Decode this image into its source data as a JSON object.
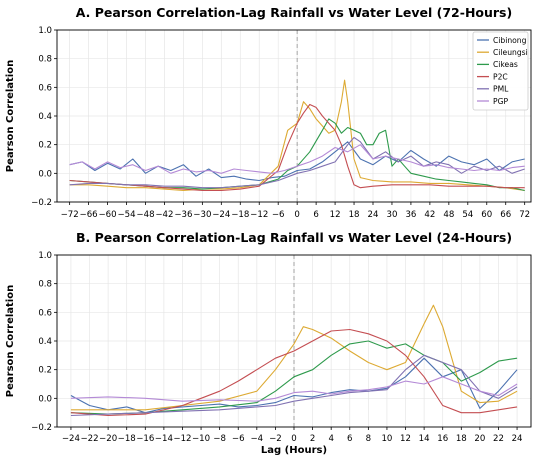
{
  "chart_data": [
    {
      "type": "line",
      "title": "A. Pearson Correlation-Lag Rainfall vs Water Level (72-Hours)",
      "xlabel": "",
      "ylabel": "Pearson Correlation",
      "xlim": [
        -76,
        74
      ],
      "ylim": [
        -0.2,
        1.0
      ],
      "xticks": [
        -72,
        -66,
        -60,
        -54,
        -48,
        -42,
        -36,
        -30,
        -24,
        -18,
        -12,
        -6,
        0,
        6,
        12,
        18,
        24,
        30,
        36,
        42,
        48,
        54,
        60,
        66,
        72
      ],
      "xticklabels": [
        "−72",
        "−66",
        "−60",
        "−54",
        "−48",
        "−42",
        "−36",
        "−30",
        "−24",
        "−18",
        "−12",
        "−6",
        "0",
        "6",
        "12",
        "18",
        "24",
        "30",
        "36",
        "42",
        "48",
        "54",
        "60",
        "66",
        "72"
      ],
      "yticks": [
        -0.2,
        0.0,
        0.2,
        0.4,
        0.6,
        0.8,
        1.0
      ],
      "yticklabels": [
        "−0.2",
        "0.0",
        "0.2",
        "0.4",
        "0.6",
        "0.8",
        "1.0"
      ],
      "vline_x": 0,
      "grid": true,
      "legend_position": "top-right",
      "series": [
        {
          "name": "Cibinong",
          "color": "#4C72B0",
          "x": [
            -72,
            -68,
            -64,
            -60,
            -56,
            -52,
            -48,
            -44,
            -40,
            -36,
            -32,
            -28,
            -24,
            -20,
            -16,
            -12,
            -8,
            -4,
            0,
            4,
            8,
            12,
            16,
            20,
            24,
            28,
            32,
            36,
            40,
            44,
            48,
            52,
            56,
            60,
            64,
            68,
            72
          ],
          "y": [
            0.06,
            0.08,
            0.02,
            0.07,
            0.03,
            0.1,
            0.0,
            0.05,
            0.02,
            0.06,
            -0.02,
            0.03,
            -0.03,
            -0.02,
            -0.04,
            -0.05,
            -0.03,
            -0.02,
            0.02,
            0.03,
            0.08,
            0.15,
            0.22,
            0.1,
            0.06,
            0.12,
            0.08,
            0.16,
            0.1,
            0.05,
            0.12,
            0.08,
            0.06,
            0.1,
            0.02,
            0.08,
            0.1
          ]
        },
        {
          "name": "Cileungsi",
          "color": "#DDAA33",
          "x": [
            -72,
            -66,
            -60,
            -54,
            -48,
            -42,
            -36,
            -30,
            -24,
            -18,
            -12,
            -6,
            -3,
            0,
            2,
            4,
            6,
            8,
            10,
            12,
            14,
            15,
            16,
            18,
            20,
            24,
            30,
            36,
            42,
            48,
            54,
            60,
            66,
            72
          ],
          "y": [
            -0.08,
            -0.08,
            -0.09,
            -0.1,
            -0.1,
            -0.11,
            -0.12,
            -0.11,
            -0.11,
            -0.1,
            -0.08,
            0.05,
            0.3,
            0.35,
            0.5,
            0.45,
            0.38,
            0.33,
            0.28,
            0.3,
            0.5,
            0.65,
            0.5,
            0.1,
            -0.03,
            -0.05,
            -0.06,
            -0.06,
            -0.07,
            -0.07,
            -0.08,
            -0.09,
            -0.1,
            -0.12
          ]
        },
        {
          "name": "Cikeas",
          "color": "#2E9A4C",
          "x": [
            -72,
            -66,
            -60,
            -54,
            -48,
            -42,
            -36,
            -30,
            -24,
            -18,
            -12,
            -6,
            -3,
            0,
            4,
            8,
            10,
            12,
            14,
            16,
            18,
            20,
            22,
            24,
            26,
            28,
            30,
            32,
            34,
            36,
            40,
            44,
            48,
            52,
            56,
            60,
            64,
            68,
            72
          ],
          "y": [
            -0.05,
            -0.06,
            -0.07,
            -0.08,
            -0.09,
            -0.1,
            -0.1,
            -0.11,
            -0.1,
            -0.09,
            -0.08,
            -0.04,
            0.02,
            0.05,
            0.15,
            0.3,
            0.38,
            0.35,
            0.28,
            0.32,
            0.3,
            0.28,
            0.2,
            0.2,
            0.28,
            0.3,
            0.05,
            0.1,
            0.05,
            0.0,
            -0.02,
            -0.04,
            -0.05,
            -0.06,
            -0.07,
            -0.08,
            -0.1,
            -0.1,
            -0.12
          ]
        },
        {
          "name": "P2C",
          "color": "#C44E52",
          "x": [
            -72,
            -66,
            -60,
            -54,
            -48,
            -42,
            -36,
            -30,
            -24,
            -18,
            -12,
            -6,
            -3,
            0,
            2,
            4,
            6,
            8,
            10,
            12,
            14,
            16,
            18,
            20,
            24,
            30,
            36,
            42,
            48,
            54,
            60,
            66,
            72
          ],
          "y": [
            -0.05,
            -0.06,
            -0.07,
            -0.08,
            -0.09,
            -0.1,
            -0.11,
            -0.12,
            -0.12,
            -0.11,
            -0.09,
            0.02,
            0.2,
            0.35,
            0.42,
            0.48,
            0.46,
            0.4,
            0.35,
            0.3,
            0.2,
            0.05,
            -0.08,
            -0.1,
            -0.09,
            -0.08,
            -0.08,
            -0.08,
            -0.09,
            -0.09,
            -0.09,
            -0.1,
            -0.1
          ]
        },
        {
          "name": "PML",
          "color": "#8172B2",
          "x": [
            -72,
            -66,
            -60,
            -54,
            -48,
            -42,
            -36,
            -30,
            -24,
            -18,
            -12,
            -6,
            0,
            4,
            8,
            12,
            16,
            18,
            20,
            24,
            28,
            32,
            36,
            40,
            44,
            48,
            52,
            56,
            60,
            64,
            68,
            72
          ],
          "y": [
            -0.08,
            -0.07,
            -0.07,
            -0.08,
            -0.08,
            -0.09,
            -0.09,
            -0.1,
            -0.1,
            -0.09,
            -0.08,
            -0.05,
            0.0,
            0.02,
            0.05,
            0.08,
            0.2,
            0.25,
            0.22,
            0.1,
            0.15,
            0.08,
            0.12,
            0.05,
            0.08,
            0.06,
            0.0,
            0.05,
            0.02,
            0.05,
            0.0,
            0.03
          ]
        },
        {
          "name": "PGP",
          "color": "#B48AD6",
          "x": [
            -72,
            -68,
            -64,
            -60,
            -56,
            -52,
            -48,
            -44,
            -40,
            -36,
            -32,
            -28,
            -24,
            -20,
            -16,
            -12,
            -8,
            -4,
            0,
            4,
            8,
            12,
            16,
            20,
            24,
            28,
            32,
            36,
            40,
            44,
            48,
            52,
            56,
            60,
            64,
            68,
            72
          ],
          "y": [
            0.06,
            0.08,
            0.03,
            0.08,
            0.04,
            0.06,
            0.02,
            0.05,
            0.0,
            0.03,
            0.01,
            0.02,
            0.0,
            0.03,
            0.02,
            0.01,
            0.0,
            0.02,
            0.05,
            0.08,
            0.12,
            0.18,
            0.15,
            0.2,
            0.1,
            0.12,
            0.1,
            0.08,
            0.05,
            0.06,
            0.04,
            0.03,
            0.02,
            0.03,
            0.02,
            0.04,
            0.05
          ]
        }
      ]
    },
    {
      "type": "line",
      "title": "B. Pearson Correlation-Lag Rainfall vs Water Level (24-Hours)",
      "xlabel": "Lag (Hours)",
      "ylabel": "Pearson Correlation",
      "xlim": [
        -25.5,
        25.5
      ],
      "ylim": [
        -0.2,
        1.0
      ],
      "xticks": [
        -24,
        -22,
        -20,
        -18,
        -16,
        -14,
        -12,
        -10,
        -8,
        -6,
        -4,
        -2,
        0,
        2,
        4,
        6,
        8,
        10,
        12,
        14,
        16,
        18,
        20,
        22,
        24
      ],
      "xticklabels": [
        "−24",
        "−22",
        "−20",
        "−18",
        "−16",
        "−14",
        "−12",
        "−10",
        "−8",
        "−6",
        "−4",
        "−2",
        "0",
        "2",
        "4",
        "6",
        "8",
        "10",
        "12",
        "14",
        "16",
        "18",
        "20",
        "22",
        "24"
      ],
      "yticks": [
        -0.2,
        0.0,
        0.2,
        0.4,
        0.6,
        0.8,
        1.0
      ],
      "yticklabels": [
        "−0.2",
        "0.0",
        "0.2",
        "0.4",
        "0.6",
        "0.8",
        "1.0"
      ],
      "vline_x": 0,
      "grid": true,
      "series": [
        {
          "name": "Cibinong",
          "color": "#4C72B0",
          "x": [
            -24,
            -22,
            -20,
            -18,
            -16,
            -14,
            -12,
            -10,
            -8,
            -6,
            -4,
            -2,
            0,
            2,
            4,
            6,
            8,
            10,
            12,
            14,
            16,
            18,
            20,
            22,
            24
          ],
          "y": [
            0.02,
            -0.05,
            -0.08,
            -0.06,
            -0.1,
            -0.07,
            -0.06,
            -0.05,
            -0.04,
            -0.06,
            -0.05,
            -0.03,
            0.02,
            0.01,
            0.04,
            0.06,
            0.05,
            0.07,
            0.15,
            0.28,
            0.15,
            0.2,
            -0.07,
            0.05,
            0.2
          ]
        },
        {
          "name": "Cileungsi",
          "color": "#DDAA33",
          "x": [
            -24,
            -20,
            -16,
            -12,
            -8,
            -4,
            -2,
            0,
            1,
            2,
            4,
            6,
            8,
            10,
            12,
            14,
            15,
            16,
            18,
            20,
            22,
            24
          ],
          "y": [
            -0.08,
            -0.08,
            -0.08,
            -0.05,
            -0.02,
            0.05,
            0.2,
            0.38,
            0.5,
            0.48,
            0.42,
            0.33,
            0.25,
            0.2,
            0.25,
            0.52,
            0.65,
            0.5,
            0.05,
            -0.03,
            -0.02,
            0.05
          ]
        },
        {
          "name": "Cikeas",
          "color": "#2E9A4C",
          "x": [
            -24,
            -20,
            -16,
            -12,
            -8,
            -4,
            -2,
            0,
            2,
            4,
            6,
            8,
            10,
            12,
            14,
            16,
            18,
            20,
            22,
            24
          ],
          "y": [
            -0.1,
            -0.11,
            -0.1,
            -0.08,
            -0.06,
            -0.03,
            0.05,
            0.15,
            0.2,
            0.3,
            0.38,
            0.4,
            0.35,
            0.38,
            0.3,
            0.25,
            0.12,
            0.18,
            0.26,
            0.28
          ]
        },
        {
          "name": "P2C",
          "color": "#C44E52",
          "x": [
            -24,
            -20,
            -16,
            -12,
            -10,
            -8,
            -6,
            -4,
            -2,
            0,
            2,
            4,
            6,
            8,
            10,
            12,
            14,
            16,
            18,
            20,
            22,
            24
          ],
          "y": [
            -0.1,
            -0.12,
            -0.11,
            -0.05,
            0.0,
            0.05,
            0.12,
            0.2,
            0.28,
            0.33,
            0.4,
            0.47,
            0.48,
            0.45,
            0.4,
            0.3,
            0.15,
            -0.05,
            -0.1,
            -0.1,
            -0.08,
            -0.06
          ]
        },
        {
          "name": "PML",
          "color": "#8172B2",
          "x": [
            -24,
            -20,
            -16,
            -12,
            -8,
            -4,
            -2,
            0,
            2,
            4,
            6,
            8,
            10,
            12,
            14,
            16,
            18,
            20,
            22,
            24
          ],
          "y": [
            -0.12,
            -0.11,
            -0.1,
            -0.09,
            -0.08,
            -0.06,
            -0.05,
            -0.02,
            0.0,
            0.02,
            0.04,
            0.05,
            0.06,
            0.2,
            0.3,
            0.25,
            0.2,
            0.05,
            0.0,
            0.08
          ]
        },
        {
          "name": "PGP",
          "color": "#B48AD6",
          "x": [
            -24,
            -20,
            -16,
            -12,
            -8,
            -4,
            -2,
            0,
            2,
            4,
            6,
            8,
            10,
            12,
            14,
            16,
            18,
            20,
            22,
            24
          ],
          "y": [
            0.0,
            0.01,
            0.0,
            -0.02,
            -0.01,
            -0.02,
            0.0,
            0.04,
            0.05,
            0.03,
            0.05,
            0.06,
            0.08,
            0.12,
            0.1,
            0.15,
            0.1,
            0.05,
            0.02,
            0.1
          ]
        }
      ]
    }
  ]
}
